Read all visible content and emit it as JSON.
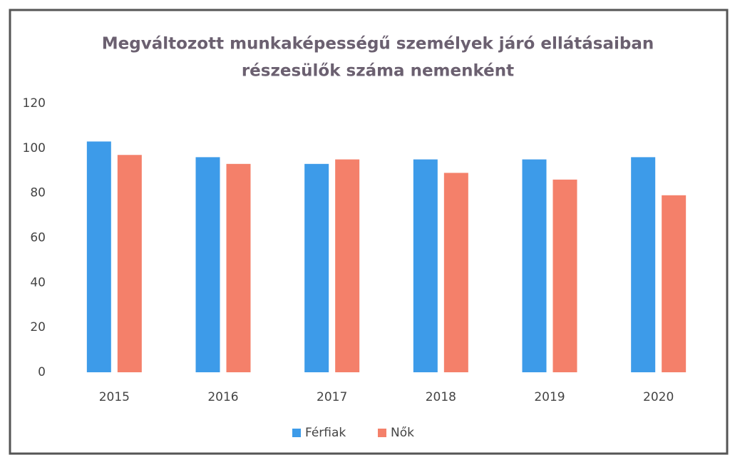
{
  "chart_data": {
    "type": "bar",
    "title": [
      "Megváltozott munkaképességű személyek járó ellátásaiban",
      "részesülők száma nemenként"
    ],
    "categories": [
      "2015",
      "2016",
      "2017",
      "2018",
      "2019",
      "2020"
    ],
    "series": [
      {
        "name": "Férfiak",
        "color": "#3d9be9",
        "values": [
          103,
          96,
          93,
          95,
          95,
          96
        ]
      },
      {
        "name": "Nők",
        "color": "#f4806a",
        "values": [
          97,
          93,
          95,
          89,
          86,
          79
        ]
      }
    ],
    "ylim": [
      0,
      120
    ],
    "yticks": [
      0,
      20,
      40,
      60,
      80,
      100,
      120
    ],
    "grid": false,
    "legend": "bottom"
  }
}
